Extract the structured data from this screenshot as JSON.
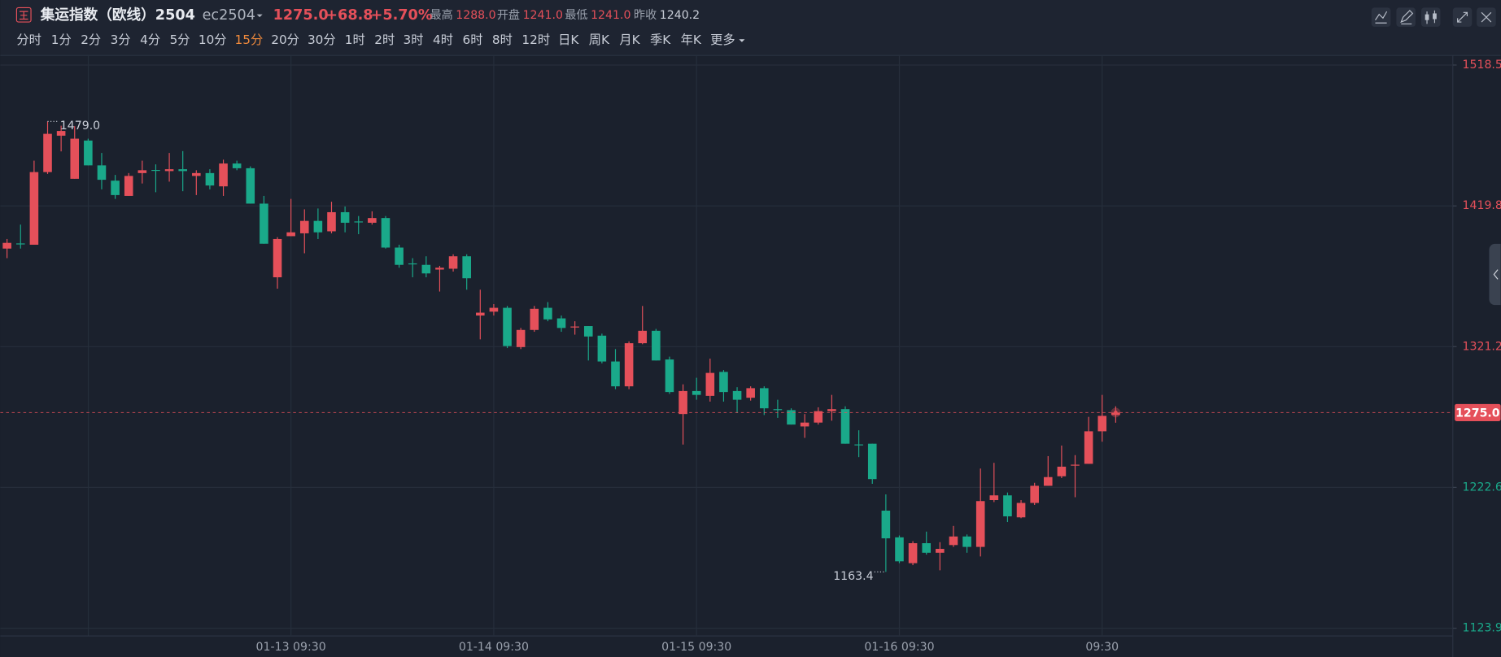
{
  "header": {
    "title": "集运指数（欧线）2504",
    "code": "ec2504",
    "price": "1275.0",
    "change": "+68.8",
    "change_pct": "+5.70%",
    "stats": [
      {
        "label": "最高",
        "value": "1288.0"
      },
      {
        "label": "开盘",
        "value": "1241.0"
      },
      {
        "label": "最低",
        "value": "1241.0"
      },
      {
        "label": "昨收",
        "value": "1240.2"
      }
    ]
  },
  "toolbar": {
    "periods": [
      "分时",
      "1分",
      "2分",
      "3分",
      "4分",
      "5分",
      "10分",
      "15分",
      "20分",
      "30分",
      "1时",
      "2时",
      "3时",
      "4时",
      "6时",
      "8时",
      "12时",
      "日K",
      "周K",
      "月K",
      "季K",
      "年K",
      "更多"
    ],
    "active": 7
  },
  "chart_data": {
    "type": "candlestick",
    "up_color": "#e5505a",
    "down_color": "#1aa98a",
    "categories": [
      null,
      null,
      null,
      null,
      null,
      null,
      null,
      null,
      null,
      null,
      null,
      null,
      null,
      null,
      null,
      null,
      null,
      null,
      null,
      null,
      null,
      "01-13 09:30",
      null,
      null,
      null,
      null,
      null,
      null,
      null,
      null,
      null,
      null,
      null,
      null,
      null,
      null,
      "01-14 09:30",
      null,
      null,
      null,
      null,
      null,
      null,
      null,
      null,
      null,
      null,
      null,
      null,
      null,
      null,
      "01-15 09:30",
      null,
      null,
      null,
      null,
      null,
      null,
      null,
      null,
      null,
      null,
      null,
      null,
      null,
      null,
      "01-16 09:30",
      null,
      null,
      null,
      null,
      null,
      null,
      null,
      null,
      null,
      null,
      null,
      null,
      null,
      null,
      "09:30",
      null
    ],
    "open": [
      1389.9,
      1393.5,
      1392.6,
      1443.5,
      1469,
      1438.8,
      1465.6,
      1448.2,
      1437.5,
      1426.8,
      1442.8,
      1445,
      1444.2,
      1445.5,
      1440.8,
      1442.8,
      1433.5,
      1449.5,
      1446.2,
      1421.4,
      1369.8,
      1398.6,
      1400.6,
      1409.3,
      1402,
      1415.4,
      1408.9,
      1408,
      1411.3,
      1390.6,
      1379.5,
      1378.5,
      1375.2,
      1375.8,
      1384.5,
      1343,
      1345.7,
      1348.4,
      1320.9,
      1332.9,
      1348.4,
      1341,
      1334.8,
      1335.6,
      1328.9,
      1310.8,
      1293.4,
      1323.6,
      1332.3,
      1312.2,
      1274,
      1290.1,
      1286.7,
      1303.5,
      1290.1,
      1285.4,
      1292.1,
      1277.4,
      1276.7,
      1265.3,
      1268,
      1276,
      1277.4,
      1252.7,
      1253.2,
      1206.3,
      1187.6,
      1169.5,
      1183.5,
      1176.8,
      1182.2,
      1188.2,
      1180.9,
      1213.7,
      1217,
      1201.6,
      1211.7,
      1223.7,
      1230.4,
      1238.2,
      1239.1,
      1261.9,
      1273.3
    ],
    "high": [
      1396.6,
      1406.7,
      1451.5,
      1479,
      1476,
      1475.7,
      1466.9,
      1456.9,
      1441.5,
      1442.8,
      1451.5,
      1448.9,
      1456.9,
      1458.2,
      1444.8,
      1445.5,
      1452.2,
      1451.5,
      1447.5,
      1426.8,
      1397.9,
      1424.7,
      1417.4,
      1418,
      1422.7,
      1419.4,
      1412.7,
      1416,
      1412.7,
      1392.6,
      1383.2,
      1384.5,
      1377.8,
      1385.9,
      1385.9,
      1361.1,
      1351,
      1349.7,
      1334.3,
      1349.7,
      1352.4,
      1343,
      1339,
      1335.6,
      1330.3,
      1319.5,
      1324.9,
      1349.7,
      1333.6,
      1314.2,
      1294.8,
      1299.4,
      1312.8,
      1304.8,
      1292.8,
      1293.4,
      1293.4,
      1284,
      1278,
      1274,
      1278.7,
      1287.4,
      1279.4,
      1262.6,
      1253.2,
      1217.7,
      1188.9,
      1184.9,
      1191.6,
      1184.2,
      1195.6,
      1189.6,
      1235.8,
      1239.8,
      1219,
      1213.7,
      1225.8,
      1244.5,
      1251.9,
      1245.2,
      1272,
      1287.4,
      1279.4
    ],
    "low": [
      1383.2,
      1389.9,
      1392.6,
      1442.2,
      1458,
      1438.8,
      1448.2,
      1431.4,
      1424.7,
      1426.8,
      1435.5,
      1429.4,
      1436.8,
      1430.1,
      1427.4,
      1431.4,
      1426.8,
      1444.8,
      1421.4,
      1393.3,
      1361.8,
      1398.6,
      1386.6,
      1396.6,
      1400.6,
      1401.3,
      1400,
      1406.7,
      1389.9,
      1376.5,
      1369.8,
      1369.8,
      1359.8,
      1373.8,
      1361.1,
      1326.3,
      1343,
      1320.2,
      1319.5,
      1331.6,
      1339,
      1331.6,
      1329.6,
      1311.5,
      1309.5,
      1291.4,
      1291.4,
      1322.9,
      1311.5,
      1288.1,
      1252.6,
      1284,
      1282.7,
      1282.7,
      1274.7,
      1283.4,
      1273.3,
      1271.3,
      1266.6,
      1257.3,
      1266.6,
      1269.3,
      1253.2,
      1243.8,
      1225.1,
      1163.4,
      1169.5,
      1168.1,
      1175.5,
      1164.5,
      1180.9,
      1176.8,
      1174.2,
      1212.3,
      1198.3,
      1201,
      1210.3,
      1223.7,
      1229.1,
      1215.7,
      1239.1,
      1254.6,
      1267.9
    ],
    "close": [
      1393.9,
      1393,
      1443.5,
      1470.3,
      1472.3,
      1466.9,
      1448.2,
      1438.1,
      1427.4,
      1440.8,
      1444.8,
      1444.5,
      1445.5,
      1444.2,
      1442.8,
      1434.1,
      1449.5,
      1446.2,
      1421.4,
      1393.3,
      1396.6,
      1401.3,
      1409.3,
      1401.3,
      1415.4,
      1408,
      1408.5,
      1411.3,
      1390.6,
      1378.5,
      1379,
      1372.5,
      1376.5,
      1384.5,
      1369.1,
      1345,
      1348.4,
      1321.6,
      1332.9,
      1347.7,
      1340.3,
      1334.3,
      1335.3,
      1328.3,
      1310.8,
      1293.4,
      1323.6,
      1332.3,
      1311.5,
      1289.4,
      1290.1,
      1287.4,
      1302.8,
      1289.4,
      1284,
      1292.1,
      1278,
      1277.3,
      1266.6,
      1268,
      1276,
      1277.4,
      1253.2,
      1252.5,
      1228.4,
      1186.9,
      1170.8,
      1183.5,
      1176.8,
      1179.5,
      1188.2,
      1180.9,
      1213,
      1217,
      1202.3,
      1211.7,
      1223.7,
      1229.8,
      1237.1,
      1238.5,
      1261.9,
      1272.7,
      1275
    ],
    "high_label": "1479.0",
    "low_label": "1163.4",
    "last_label": "1275.0",
    "prev_close": 1240.2,
    "ylim": [
      1118.5,
      1525.2
    ],
    "yticks": [
      1123.9,
      1222.6,
      1321.2,
      1419.8,
      1518.5
    ],
    "grid": true
  }
}
